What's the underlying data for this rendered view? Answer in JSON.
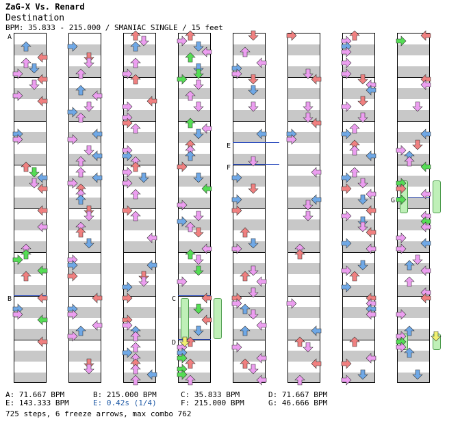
{
  "header": {
    "title": "ZaG-X Vs. Renard",
    "difficulty": "Destination",
    "bpm_line": "BPM: 35.833 - 215.000 / SMANIAC SINGLE / 15 feet"
  },
  "markers": {
    "A": "A",
    "B": "B",
    "C": "C",
    "D": "D",
    "E": "E",
    "F": "F",
    "G": "G"
  },
  "legend": {
    "a": "A: 71.667 BPM",
    "b": "B: 215.000 BPM",
    "c": "C: 35.833 BPM",
    "d": "D: 71.667 BPM",
    "e": "E: 143.333 BPM",
    "e2": "E: 0.42s (1/4)",
    "f": "F: 215.000 BPM",
    "g": "G: 46.666 BPM"
  },
  "summary": "725 steps, 6 freeze arrows, max combo 762",
  "colors": {
    "quarter": "#f08080",
    "eighth": "#6fa8e6",
    "sixteenth": "#ec9ef0",
    "twelfth": "#55dd55",
    "freeze": "#bff0b8",
    "stop_text": "#1f5aa6",
    "freeze_head": "#f0f070"
  }
}
